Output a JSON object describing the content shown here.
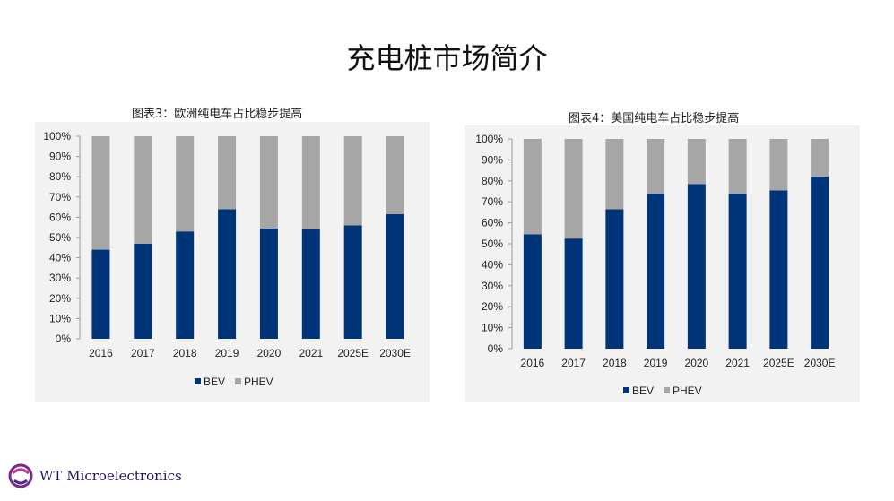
{
  "slide": {
    "title": "充电桩市场简介"
  },
  "colors": {
    "bev": "#003478",
    "phev": "#a6a6a6",
    "panel_bg": "#f2f2f2"
  },
  "logo": {
    "text": "WT Microelectronics",
    "icon": "wt-logo-icon"
  },
  "chart_data": [
    {
      "type": "bar",
      "stacked": true,
      "title": "图表3：欧洲纯电车占比稳步提高",
      "categories": [
        "2016",
        "2017",
        "2018",
        "2019",
        "2020",
        "2021",
        "2025E",
        "2030E"
      ],
      "series": [
        {
          "name": "BEV",
          "values": [
            44,
            47,
            53,
            64,
            54.5,
            54,
            56,
            61.5
          ]
        },
        {
          "name": "PHEV",
          "values": [
            56,
            53,
            47,
            36,
            45.5,
            46,
            44,
            38.5
          ]
        }
      ],
      "ylim": [
        0,
        100
      ],
      "yticks": [
        "0%",
        "10%",
        "20%",
        "30%",
        "40%",
        "50%",
        "60%",
        "70%",
        "80%",
        "90%",
        "100%"
      ],
      "legend": "bottom-left",
      "grid": false
    },
    {
      "type": "bar",
      "stacked": true,
      "title": "图表4：美国纯电车占比稳步提高",
      "categories": [
        "2016",
        "2017",
        "2018",
        "2019",
        "2020",
        "2021",
        "2025E",
        "2030E"
      ],
      "series": [
        {
          "name": "BEV",
          "values": [
            54.5,
            52.5,
            66.5,
            74,
            78.5,
            74,
            75.5,
            82
          ]
        },
        {
          "name": "PHEV",
          "values": [
            45.5,
            47.5,
            33.5,
            26,
            21.5,
            26,
            24.5,
            18
          ]
        }
      ],
      "ylim": [
        0,
        100
      ],
      "yticks": [
        "0%",
        "10%",
        "20%",
        "30%",
        "40%",
        "50%",
        "60%",
        "70%",
        "80%",
        "90%",
        "100%"
      ],
      "legend": "bottom-left",
      "grid": false
    }
  ]
}
